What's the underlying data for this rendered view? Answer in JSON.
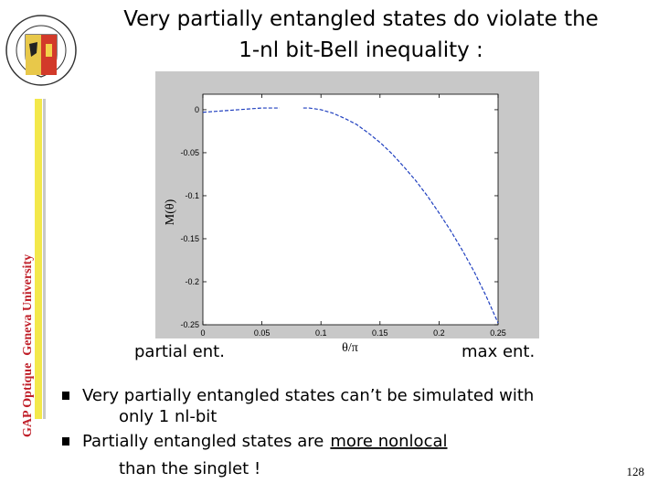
{
  "slide": {
    "title_lines": [
      "Very partially entangled states do violate the",
      "1-nl bit-Bell inequality :"
    ],
    "side_label": [
      "GAP Optique",
      "Geneva University"
    ],
    "annotations": [
      "partial ent.",
      "max ent."
    ],
    "bullet_1": [
      "Very partially entangled states can’t be simulated with",
      "only 1 nl-bit"
    ],
    "bullet_2": {
      "text": "Partially entangled states are",
      "emphasis": "more nonlocal",
      "continuation": "than the singlet !"
    },
    "page_number": "128"
  },
  "chart_data": {
    "type": "line",
    "x_label": "θ/π",
    "y_label": "M(θ)",
    "x": [
      0,
      0.01,
      0.02,
      0.03,
      0.04,
      0.05,
      0.06,
      0.065,
      0.075,
      0.085,
      0.09,
      0.1,
      0.11,
      0.12,
      0.13,
      0.14,
      0.15,
      0.16,
      0.17,
      0.18,
      0.19,
      0.2,
      0.21,
      0.22,
      0.23,
      0.24,
      0.25
    ],
    "series": [
      {
        "color": "#1f3fbf",
        "values": [
          -0.003,
          -0.002,
          -0.001,
          0.0,
          0.001,
          0.002,
          0.002,
          0.002,
          null,
          0.002,
          0.002,
          0.0,
          -0.004,
          -0.01,
          -0.017,
          -0.027,
          -0.038,
          -0.051,
          -0.066,
          -0.082,
          -0.1,
          -0.12,
          -0.141,
          -0.164,
          -0.189,
          -0.217,
          -0.248
        ]
      }
    ],
    "xlim": [
      0,
      0.25
    ],
    "ylim": [
      -0.25,
      0.018
    ],
    "xticks": [
      0,
      0.05,
      0.1,
      0.15,
      0.2,
      0.25
    ],
    "yticks": [
      0,
      -0.05,
      -0.1,
      -0.15,
      -0.2,
      -0.25
    ]
  }
}
